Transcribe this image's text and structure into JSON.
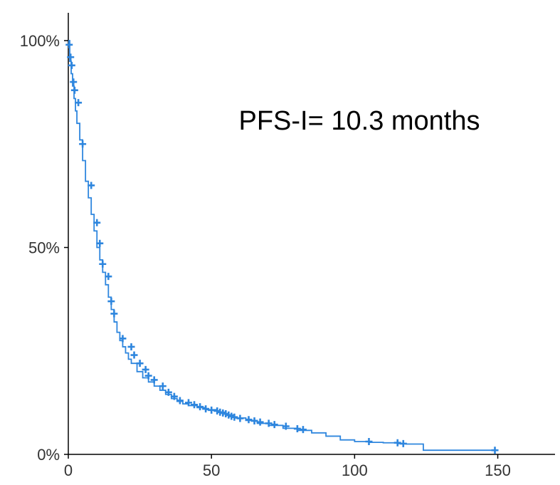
{
  "chart_data": {
    "type": "line",
    "title": "",
    "xlabel": "",
    "ylabel": "",
    "xlim": [
      0,
      170
    ],
    "ylim": [
      0,
      100
    ],
    "x_ticks": [
      0,
      50,
      100,
      150
    ],
    "x_tick_labels": [
      "0",
      "50",
      "100",
      "150"
    ],
    "y_ticks": [
      0,
      50,
      100
    ],
    "y_tick_labels": [
      "0%",
      "50%",
      "100%"
    ],
    "annotation": "PFS-I= 10.3 months",
    "grid": false,
    "legend": "none",
    "step": true,
    "series": [
      {
        "color": "#2e86de",
        "x": [
          0,
          0.5,
          1,
          1.5,
          2,
          2.5,
          3,
          4,
          5,
          6,
          7,
          8,
          9,
          10,
          11,
          12,
          13,
          14,
          15,
          16,
          17,
          18,
          19,
          20,
          21,
          22,
          24,
          26,
          28,
          30,
          32,
          34,
          36,
          38,
          40,
          42,
          45,
          48,
          52,
          55,
          58,
          62,
          66,
          70,
          75,
          80,
          85,
          90,
          95,
          100,
          105,
          110,
          115,
          118,
          124,
          130,
          140,
          149
        ],
        "y": [
          100,
          95,
          92,
          89,
          86,
          83,
          80,
          76,
          71,
          66,
          62,
          58,
          54,
          50,
          47,
          44,
          41,
          38,
          35,
          32,
          29.5,
          27.5,
          26,
          24.5,
          23,
          22,
          20,
          18.5,
          17.5,
          16.5,
          15.5,
          14.5,
          13.5,
          12.8,
          12.2,
          11.8,
          11.3,
          10.8,
          10.2,
          9.5,
          8.8,
          8.2,
          7.5,
          7,
          6.3,
          5.8,
          5.2,
          4.4,
          3.5,
          3.1,
          2.9,
          2.8,
          2.6,
          2.5,
          1,
          1,
          1,
          1
        ],
        "censor_x": [
          0.3,
          0.8,
          1.2,
          1.8,
          2.2,
          3.5,
          5,
          8,
          10,
          11,
          12,
          14,
          15,
          16,
          19,
          22,
          23,
          25,
          27,
          28,
          30,
          33,
          35,
          37,
          39,
          42,
          44,
          46,
          48,
          50,
          52,
          53,
          54,
          55,
          56,
          57,
          58,
          60,
          63,
          65,
          67,
          70,
          72,
          76,
          80,
          82,
          105,
          115,
          117,
          149
        ],
        "censor_y": [
          99,
          96,
          94,
          90,
          88,
          85,
          75,
          65,
          56,
          51,
          46,
          43,
          37,
          34,
          28,
          26,
          24,
          22,
          20.5,
          19,
          18,
          16.5,
          15,
          14,
          13,
          12.5,
          12,
          11.5,
          11,
          10.7,
          10.5,
          10.2,
          10,
          9.8,
          9.5,
          9.2,
          9,
          8.7,
          8.4,
          8.1,
          7.8,
          7.5,
          7.2,
          6.8,
          6.2,
          6.0,
          3.1,
          2.8,
          2.6,
          1
        ]
      }
    ]
  }
}
